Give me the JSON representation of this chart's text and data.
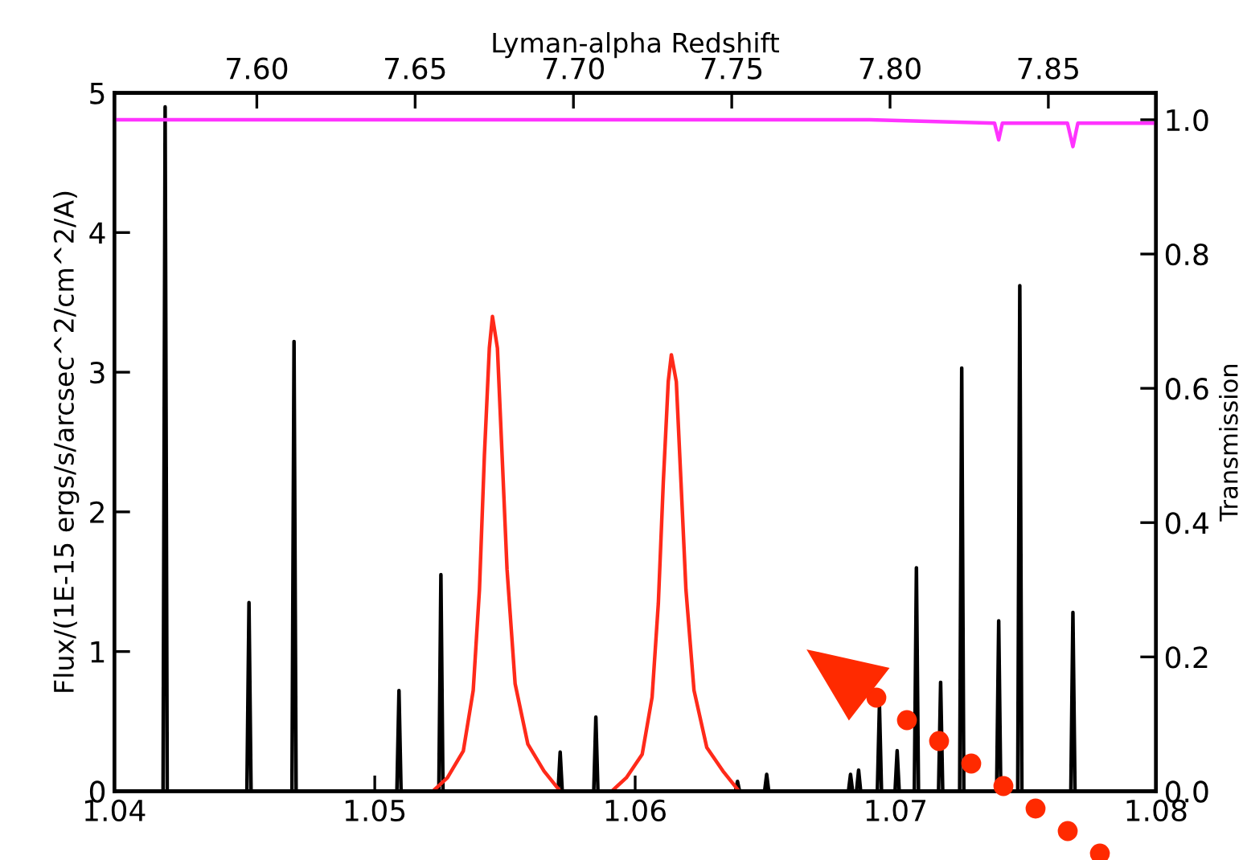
{
  "chart_data": {
    "type": "line",
    "xlabel": null,
    "ylabel": "Flux/(1E-15 ergs/s/arcsec^2/cm^2/A)",
    "y2label": "Transmission",
    "x2label": "Lyman-alpha Redshift",
    "xlim": [
      1.04,
      1.08
    ],
    "xticks": [
      1.04,
      1.05,
      1.06,
      1.07,
      1.08
    ],
    "ylim": [
      0,
      5
    ],
    "yticks": [
      0,
      1,
      2,
      3,
      4,
      5
    ],
    "y2lim": [
      0,
      1.04
    ],
    "y2ticks": [
      {
        "value": 0,
        "label": "0.0"
      },
      0.2,
      0.4,
      0.6,
      0.8,
      {
        "value": 1,
        "label": "1.0"
      }
    ],
    "x2lim": [
      7.555,
      7.884
    ],
    "x2ticks": [
      {
        "value": 7.6,
        "label": "7.60"
      },
      {
        "value": 7.65,
        "label": "7.65"
      },
      {
        "value": 7.7,
        "label": "7.70"
      },
      {
        "value": 7.75,
        "label": "7.75"
      },
      {
        "value": 7.8,
        "label": "7.80"
      },
      {
        "value": 7.85,
        "label": "7.85"
      }
    ],
    "marker": "none",
    "line_style": "solid",
    "series": [
      {
        "color": "#000000",
        "x": [
          1.04,
          1.04187,
          1.04195,
          1.04203,
          1.04509,
          1.04517,
          1.04525,
          1.04682,
          1.0469,
          1.04698,
          1.05085,
          1.05093,
          1.05101,
          1.05246,
          1.05254,
          1.05262,
          1.05704,
          1.05712,
          1.0572,
          1.05841,
          1.05849,
          1.05857,
          1.06385,
          1.06393,
          1.06401,
          1.06497,
          1.06505,
          1.06513,
          1.06819,
          1.06827,
          1.06835,
          1.0685,
          1.06858,
          1.06866,
          1.0693,
          1.06938,
          1.06946,
          1.06998,
          1.07006,
          1.07014,
          1.07072,
          1.0708,
          1.07088,
          1.07165,
          1.07173,
          1.07181,
          1.07246,
          1.07254,
          1.07262,
          1.07388,
          1.07396,
          1.07404,
          1.07469,
          1.07477,
          1.07485,
          1.07673,
          1.07681,
          1.07689,
          1.08
        ],
        "values": [
          0,
          0,
          4.9,
          0,
          0,
          1.35,
          0,
          0,
          3.22,
          0,
          0,
          0.72,
          0,
          0,
          1.55,
          0,
          0,
          0.28,
          0,
          0,
          0.53,
          0,
          0,
          0.07,
          0,
          0,
          0.12,
          0,
          0,
          0.12,
          0,
          0,
          0.15,
          0,
          0,
          0.62,
          0,
          0,
          0.29,
          0,
          0,
          1.6,
          0,
          0,
          0.78,
          0,
          0,
          3.03,
          0,
          0,
          1.22,
          0,
          0,
          3.62,
          0,
          0,
          1.28,
          0,
          0
        ]
      },
      {
        "color": "#ff2a1a",
        "axis": "y2",
        "x": [
          1.05223,
          1.05279,
          1.0534,
          1.05378,
          1.05402,
          1.05421,
          1.0544,
          1.05452,
          1.05471,
          1.05489,
          1.05508,
          1.05539,
          1.05588,
          1.0565,
          1.05712
        ],
        "values": [
          0,
          0.02,
          0.06,
          0.15,
          0.3,
          0.5,
          0.66,
          0.707,
          0.66,
          0.5,
          0.33,
          0.16,
          0.07,
          0.03,
          0
        ]
      },
      {
        "color": "#ff2a1a",
        "axis": "y2",
        "x": [
          1.0591,
          1.05966,
          1.06027,
          1.06065,
          1.06089,
          1.06108,
          1.06127,
          1.06139,
          1.06158,
          1.06176,
          1.06195,
          1.06226,
          1.06275,
          1.06337,
          1.06399
        ],
        "values": [
          0,
          0.02,
          0.055,
          0.14,
          0.28,
          0.46,
          0.61,
          0.65,
          0.61,
          0.46,
          0.3,
          0.15,
          0.065,
          0.03,
          0
        ]
      },
      {
        "color": "#ff33ff",
        "axis": "y2",
        "x": [
          1.04,
          1.069,
          1.0738,
          1.07396,
          1.0741,
          1.0766,
          1.07681,
          1.077,
          1.08
        ],
        "values": [
          1.0,
          1.0,
          0.995,
          0.97,
          0.995,
          0.995,
          0.96,
          0.995,
          0.995
        ]
      }
    ]
  }
}
